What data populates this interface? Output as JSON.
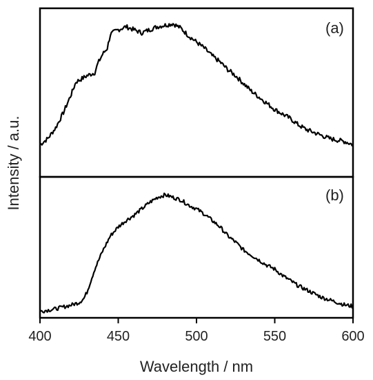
{
  "chart_data": {
    "type": "line",
    "title": "",
    "xlabel": "Wavelength / nm",
    "ylabel": "Intensity / a.u.",
    "xlim": [
      400,
      600
    ],
    "xticks": [
      "400",
      "450",
      "500",
      "550",
      "600"
    ],
    "ylim": [
      0,
      1.1
    ],
    "yticks_shown": false,
    "grid": false,
    "legend": "none",
    "line_color": "#000000",
    "panels": [
      {
        "label": "(a)",
        "series": [
          {
            "x": [
              400,
              405,
              410,
              415,
              420,
              423,
              425,
              430,
              435,
              437,
              440,
              443,
              445,
              448,
              450,
              455,
              460,
              465,
              470,
              475,
              480,
              485,
              490,
              495,
              500,
              505,
              510,
              515,
              520,
              525,
              530,
              535,
              540,
              545,
              550,
              555,
              560,
              565,
              570,
              575,
              580,
              585,
              590,
              595,
              600
            ],
            "y": [
              0.21,
              0.25,
              0.32,
              0.42,
              0.54,
              0.62,
              0.63,
              0.66,
              0.68,
              0.74,
              0.8,
              0.84,
              0.93,
              0.95,
              0.96,
              0.98,
              0.96,
              0.94,
              0.96,
              0.98,
              0.99,
              1.0,
              0.97,
              0.92,
              0.88,
              0.84,
              0.79,
              0.75,
              0.7,
              0.66,
              0.61,
              0.56,
              0.52,
              0.48,
              0.44,
              0.41,
              0.38,
              0.34,
              0.31,
              0.29,
              0.27,
              0.25,
              0.24,
              0.23,
              0.21
            ]
          }
        ]
      },
      {
        "label": "(b)",
        "series": [
          {
            "x": [
              400,
              410,
              420,
              425,
              428,
              430,
              435,
              440,
              445,
              450,
              455,
              460,
              465,
              470,
              475,
              480,
              485,
              490,
              495,
              500,
              505,
              510,
              515,
              520,
              525,
              530,
              535,
              540,
              545,
              550,
              555,
              560,
              565,
              570,
              575,
              580,
              585,
              590,
              595,
              600
            ],
            "y": [
              0.05,
              0.07,
              0.1,
              0.12,
              0.15,
              0.2,
              0.38,
              0.52,
              0.64,
              0.71,
              0.76,
              0.8,
              0.85,
              0.9,
              0.94,
              0.96,
              0.94,
              0.92,
              0.88,
              0.85,
              0.81,
              0.76,
              0.71,
              0.64,
              0.59,
              0.53,
              0.49,
              0.45,
              0.41,
              0.38,
              0.33,
              0.29,
              0.25,
              0.22,
              0.19,
              0.16,
              0.14,
              0.12,
              0.1,
              0.09
            ]
          }
        ]
      }
    ]
  }
}
